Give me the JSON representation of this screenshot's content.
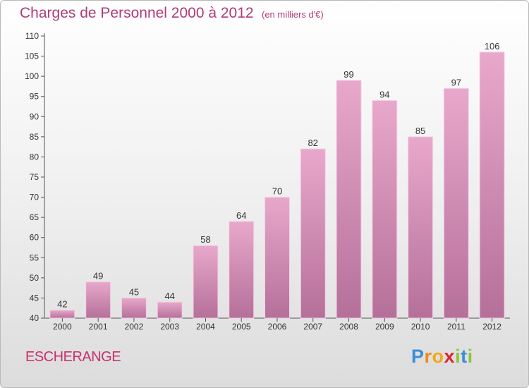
{
  "chart_data": {
    "type": "bar",
    "title": "Charges de Personnel 2000 à 2012",
    "subtitle": "(en milliers d'€)",
    "categories": [
      "2000",
      "2001",
      "2002",
      "2003",
      "2004",
      "2005",
      "2006",
      "2007",
      "2008",
      "2009",
      "2010",
      "2011",
      "2012"
    ],
    "values": [
      42,
      49,
      45,
      44,
      58,
      64,
      70,
      82,
      99,
      94,
      85,
      97,
      106
    ],
    "ylim": [
      40,
      110
    ],
    "yticks": [
      40,
      45,
      50,
      55,
      60,
      65,
      70,
      75,
      80,
      85,
      90,
      95,
      100,
      105,
      110
    ],
    "xlabel": "",
    "ylabel": "",
    "grid": false,
    "legend": "none"
  },
  "footer": {
    "commune": "ESCHERANGE",
    "logo_letters": [
      {
        "char": "P",
        "color": "#3b8fd6"
      },
      {
        "char": "r",
        "color": "#f08a1c"
      },
      {
        "char": "o",
        "color": "#f2a81d"
      },
      {
        "char": "x",
        "color": "#d8282f"
      },
      {
        "char": "i",
        "color": "#8cc63f"
      },
      {
        "char": "t",
        "color": "#3b8fd6"
      },
      {
        "char": "i",
        "color": "#8cc63f"
      }
    ]
  },
  "colors": {
    "bar_light": "#e8a8cb",
    "bar_dark": "#b5709a",
    "title": "#b03a7a",
    "commune": "#c8306d"
  }
}
